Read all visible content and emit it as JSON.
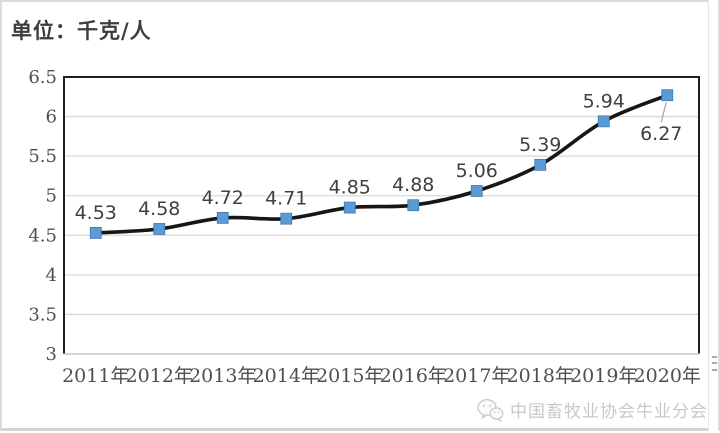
{
  "page": {
    "unit_label": "单位：千克/人"
  },
  "chart_data": {
    "type": "line",
    "title": "单位：千克/人",
    "categories": [
      "2011年",
      "2012年",
      "2013年",
      "2014年",
      "2015年",
      "2016年",
      "2017年",
      "2018年",
      "2019年",
      "2020年"
    ],
    "values": [
      4.53,
      4.58,
      4.72,
      4.71,
      4.85,
      4.88,
      5.06,
      5.39,
      5.94,
      6.27
    ],
    "xlabel": "",
    "ylabel": "",
    "ylim": [
      3,
      6.5
    ],
    "yticks": [
      3,
      3.5,
      4,
      4.5,
      5,
      5.5,
      6,
      6.5
    ],
    "grid": true,
    "legend_position": "none",
    "line_color": "#161616",
    "marker_shape": "square",
    "marker_color": "#5b9bd5",
    "marker_edge_color": "#4079b2",
    "gridline_color": "#d9d9d9",
    "axis_border_color": "#1f1f1f",
    "bottom_axis_color": "#c6c6c6",
    "data_label_color": "#404040",
    "axis_tick_color": "#4f4f4f",
    "leader_line_color": "#a6a6a6",
    "last_point_label_position": "below-with-leader"
  },
  "watermark": {
    "icon": "wechat-icon",
    "text": "中国畜牧业协会牛业分会"
  }
}
